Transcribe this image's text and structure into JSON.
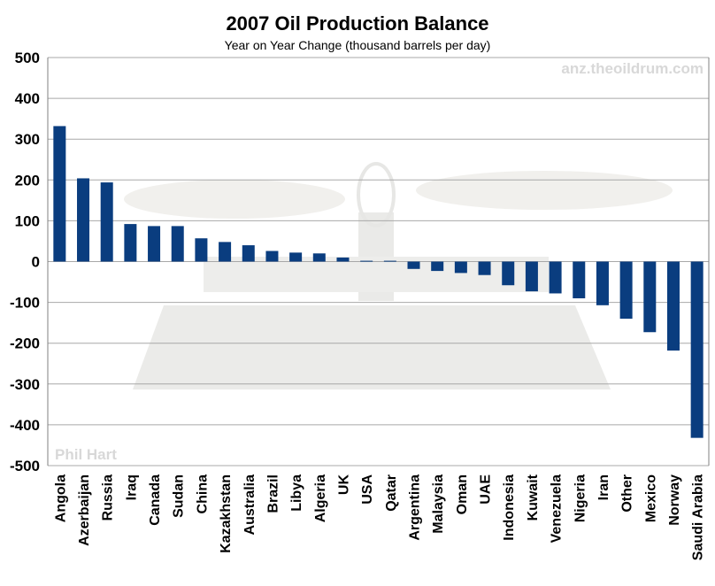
{
  "title": "2007 Oil Production Balance",
  "subtitle": "Year on Year Change (thousand barrels per day)",
  "watermark_site": "anz.theoildrum.com",
  "watermark_author": "Phil Hart",
  "colors": {
    "bar": "#0a3d7f",
    "grid": "#a8a8a8",
    "axis": "#808080"
  },
  "chart_data": {
    "type": "bar",
    "title": "2007 Oil Production Balance",
    "subtitle": "Year on Year Change (thousand barrels per day)",
    "xlabel": "",
    "ylabel": "",
    "ylim": [
      -500,
      500
    ],
    "yticks": [
      500,
      400,
      300,
      200,
      100,
      0,
      -100,
      -200,
      -300,
      -400,
      -500
    ],
    "grid": true,
    "legend": "none",
    "categories": [
      "Angola",
      "Azerbaijan",
      "Russia",
      "Iraq",
      "Canada",
      "Sudan",
      "China",
      "Kazakhstan",
      "Australia",
      "Brazil",
      "Libya",
      "Algeria",
      "UK",
      "USA",
      "Qatar",
      "Argentina",
      "Malaysia",
      "Oman",
      "UAE",
      "Indonesia",
      "Kuwait",
      "Venezuela",
      "Nigeria",
      "Iran",
      "Other",
      "Mexico",
      "Norway",
      "Saudi Arabia"
    ],
    "values": [
      332,
      204,
      194,
      92,
      87,
      87,
      57,
      48,
      40,
      26,
      22,
      20,
      10,
      2,
      2,
      -18,
      -23,
      -28,
      -33,
      -58,
      -73,
      -78,
      -90,
      -107,
      -140,
      -173,
      -218,
      -432
    ]
  }
}
